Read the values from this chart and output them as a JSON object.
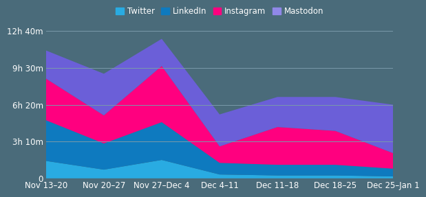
{
  "categories": [
    "Nov 13–20",
    "Nov 20–27",
    "Nov 27–Dec 4",
    "Dec 4–11",
    "Dec 11–18",
    "Dec 18–25",
    "Dec 25–Jan 1"
  ],
  "twitter": [
    90,
    45,
    95,
    20,
    15,
    15,
    10
  ],
  "linkedin": [
    210,
    135,
    195,
    60,
    55,
    55,
    40
  ],
  "instagram": [
    215,
    145,
    290,
    85,
    195,
    175,
    80
  ],
  "mastodon": [
    145,
    215,
    140,
    165,
    155,
    175,
    250
  ],
  "colors": {
    "twitter": "#29ABE2",
    "linkedin": "#0E7ABF",
    "instagram": "#FF007F",
    "mastodon": "#6B5FD8"
  },
  "legend_colors": {
    "twitter": "#29ABE2",
    "linkedin": "#0E7ABF",
    "instagram": "#FF007F",
    "mastodon": "#9088E8"
  },
  "background_color": "#4A6B7A",
  "yticks_minutes": [
    0,
    190,
    380,
    570,
    760
  ],
  "ytick_labels": [
    "0",
    "3h 10m",
    "6h 20m",
    "9h 30m",
    "12h 40m"
  ],
  "ymax": 810,
  "grid_color": "#7A9AAA",
  "text_color": "#FFFFFF",
  "font_size_ticks": 8.5,
  "font_size_legend": 8.5
}
